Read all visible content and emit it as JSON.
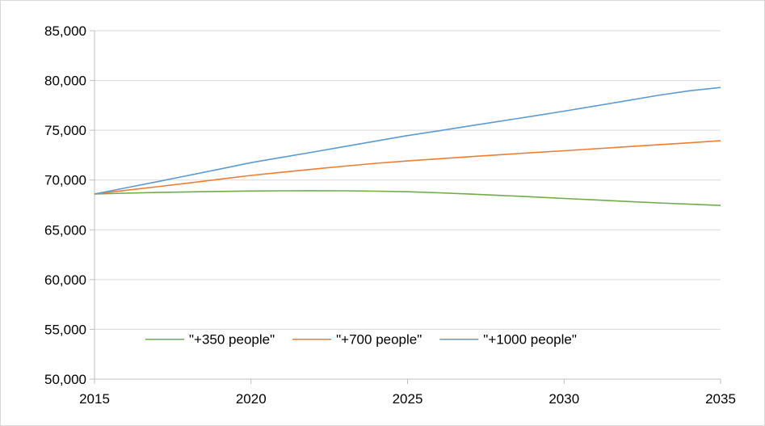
{
  "chart_data": {
    "type": "line",
    "title": "",
    "xlabel": "",
    "ylabel": "",
    "xlim": [
      2015,
      2035
    ],
    "ylim": [
      50000,
      85000
    ],
    "x_ticks": [
      2015,
      2020,
      2025,
      2030,
      2035
    ],
    "x_tick_labels": [
      "2015",
      "2020",
      "2025",
      "2030",
      "2035"
    ],
    "y_ticks": [
      50000,
      55000,
      60000,
      65000,
      70000,
      75000,
      80000,
      85000
    ],
    "y_tick_labels": [
      "50,000",
      "55,000",
      "60,000",
      "65,000",
      "70,000",
      "75,000",
      "80,000",
      "85,000"
    ],
    "grid": "horizontal",
    "legend_position": "bottom-inside",
    "x": [
      2015,
      2016,
      2017,
      2018,
      2019,
      2020,
      2021,
      2022,
      2023,
      2024,
      2025,
      2026,
      2027,
      2028,
      2029,
      2030,
      2031,
      2032,
      2033,
      2034,
      2035
    ],
    "series": [
      {
        "name": "\"+350 people\"",
        "color": "#70ad47",
        "values": [
          68600,
          68680,
          68750,
          68810,
          68860,
          68900,
          68920,
          68930,
          68920,
          68880,
          68820,
          68720,
          68590,
          68450,
          68300,
          68150,
          68000,
          67850,
          67700,
          67570,
          67450
        ]
      },
      {
        "name": "\"+700 people\"",
        "color": "#ed7d31",
        "values": [
          68600,
          68970,
          69330,
          69700,
          70080,
          70460,
          70780,
          71100,
          71400,
          71680,
          71920,
          72140,
          72350,
          72550,
          72750,
          72940,
          73140,
          73340,
          73540,
          73740,
          73950
        ]
      },
      {
        "name": "\"+1000 people\"",
        "color": "#5b9bd5",
        "values": [
          68600,
          69210,
          69830,
          70460,
          71100,
          71750,
          72280,
          72820,
          73370,
          73920,
          74470,
          74950,
          75440,
          75930,
          76420,
          76920,
          77440,
          77970,
          78500,
          78970,
          79300
        ]
      }
    ]
  }
}
